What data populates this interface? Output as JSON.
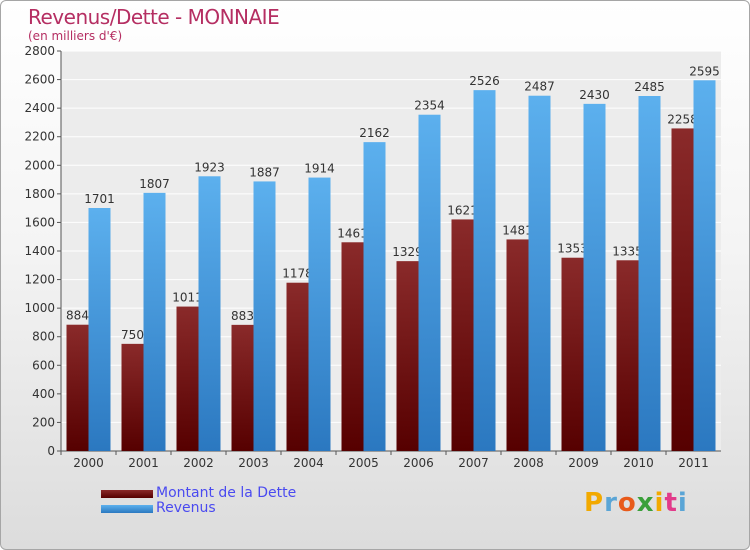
{
  "chart_data": {
    "type": "bar",
    "title": "Revenus/Dette - MONNAIE",
    "subtitle": "(en milliers d'€)",
    "categories": [
      "2000",
      "2001",
      "2002",
      "2003",
      "2004",
      "2005",
      "2006",
      "2007",
      "2008",
      "2009",
      "2010",
      "2011"
    ],
    "series": [
      {
        "name": "Montant de la Dette",
        "color": "#7a1414",
        "values": [
          884,
          750,
          1011,
          883,
          1178,
          1461,
          1329,
          1621,
          1481,
          1353,
          1335,
          2258
        ],
        "labels": [
          "884",
          "750",
          "1011",
          "883",
          "1178",
          "1461",
          "1329",
          "1621",
          "1481",
          "1353",
          "1335",
          "2258"
        ]
      },
      {
        "name": "Revenus",
        "color": "#3d9be6",
        "values": [
          1701,
          1807,
          1923,
          1887,
          1914,
          2162,
          2354,
          2526,
          2487,
          2430,
          2485,
          2595
        ],
        "labels": [
          "1701",
          "1807",
          "1923",
          "1887",
          "1914",
          "2162",
          "2354",
          "2526",
          "2487",
          "2430",
          "2485",
          "2595"
        ]
      }
    ],
    "yticks": [
      "0",
      "200",
      "400",
      "600",
      "800",
      "1000",
      "1200",
      "1400",
      "1600",
      "1800",
      "2000",
      "2200",
      "2400",
      "2600",
      "2800"
    ],
    "ylim": [
      0,
      2800
    ],
    "grid": true,
    "legend_position": "bottom-left"
  },
  "logo": {
    "text": "Proxiti",
    "colors": [
      "#f2a900",
      "#5aa5d6",
      "#e85a1a",
      "#3aa03a",
      "#f2a900",
      "#e23a8a",
      "#5aa5d6"
    ]
  }
}
